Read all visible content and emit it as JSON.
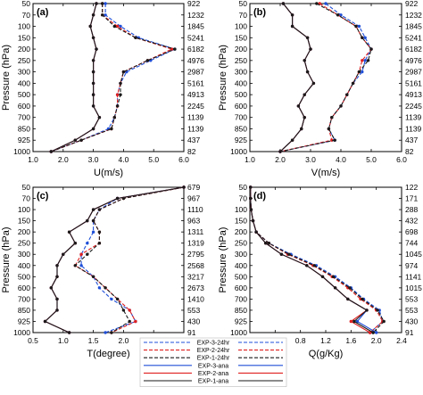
{
  "pressure_levels": [
    50,
    70,
    100,
    150,
    200,
    250,
    300,
    400,
    500,
    600,
    700,
    850,
    925,
    1000
  ],
  "legend": [
    {
      "label": "EXP-3-24hr",
      "color": "#1f4fd8",
      "dash": true
    },
    {
      "label": "EXP-2-24hr",
      "color": "#e02020",
      "dash": true
    },
    {
      "label": "EXP-1-24hr",
      "color": "#1a1a1a",
      "dash": true
    },
    {
      "label": "EXP-3-ana",
      "color": "#1f4fd8",
      "dash": false
    },
    {
      "label": "EXP-2-ana",
      "color": "#e02020",
      "dash": false
    },
    {
      "label": "EXP-1-ana",
      "color": "#1a1a1a",
      "dash": false
    }
  ],
  "chart_data": [
    {
      "type": "line",
      "panel_label": "(a)",
      "xlabel": "U(m/s)",
      "ylabel": "Pressure (hPa)",
      "xlim": [
        1.0,
        6.0
      ],
      "xticks": [
        1.0,
        2.0,
        3.0,
        4.0,
        5.0,
        6.0
      ],
      "xtick_labels": [
        "1.0",
        "2.0",
        "3.0",
        "4.0",
        "5.0",
        "6.0"
      ],
      "y": [
        50,
        70,
        100,
        150,
        200,
        250,
        300,
        400,
        500,
        600,
        700,
        850,
        925,
        1000
      ],
      "right_labels": [
        "922",
        "1232",
        "1845",
        "5241",
        "6182",
        "4976",
        "2987",
        "5161",
        "4913",
        "2245",
        "1139",
        "1139",
        "437",
        "82"
      ],
      "series": [
        {
          "name": "EXP-3-24hr",
          "group": "24hr",
          "x": [
            3.4,
            3.4,
            3.9,
            4.5,
            5.7,
            4.9,
            4.1,
            3.9,
            3.8,
            3.8,
            3.7,
            3.5,
            2.6,
            1.6
          ]
        },
        {
          "name": "EXP-2-24hr",
          "group": "24hr",
          "x": [
            3.3,
            3.3,
            3.8,
            4.4,
            5.6,
            4.8,
            4.0,
            3.9,
            3.8,
            3.8,
            3.7,
            3.6,
            2.6,
            1.6
          ]
        },
        {
          "name": "EXP-1-24hr",
          "group": "24hr",
          "x": [
            3.3,
            3.3,
            3.7,
            4.4,
            5.7,
            4.8,
            4.0,
            3.9,
            3.9,
            3.8,
            3.7,
            3.6,
            2.6,
            1.6
          ]
        },
        {
          "name": "EXP-3-ana",
          "group": "ana",
          "x": [
            3.1,
            3.0,
            2.9,
            3.0,
            3.1,
            3.0,
            3.0,
            3.0,
            3.0,
            3.0,
            3.2,
            3.0,
            2.4,
            1.6
          ]
        },
        {
          "name": "EXP-2-ana",
          "group": "ana",
          "x": [
            3.1,
            3.0,
            2.9,
            3.0,
            3.1,
            3.0,
            3.0,
            3.0,
            3.0,
            3.0,
            3.2,
            3.0,
            2.4,
            1.6
          ]
        },
        {
          "name": "EXP-1-ana",
          "group": "ana",
          "x": [
            3.1,
            3.0,
            2.9,
            3.0,
            3.1,
            3.0,
            3.0,
            3.0,
            3.0,
            3.0,
            3.2,
            3.0,
            2.4,
            1.6
          ]
        }
      ]
    },
    {
      "type": "line",
      "panel_label": "(b)",
      "xlabel": "V(m/s)",
      "ylabel": "Pressure (hPa)",
      "xlim": [
        1.0,
        6.0
      ],
      "xticks": [
        1.0,
        2.0,
        3.0,
        4.0,
        5.0,
        6.0
      ],
      "xtick_labels": [
        "1.0",
        "2.0",
        "3.0",
        "4.0",
        "5.0",
        "6.0"
      ],
      "y": [
        50,
        70,
        100,
        150,
        200,
        250,
        300,
        400,
        500,
        600,
        700,
        850,
        925,
        1000
      ],
      "right_labels": [
        "922",
        "1232",
        "1845",
        "5241",
        "6182",
        "4976",
        "2987",
        "5161",
        "4913",
        "2245",
        "1139",
        "1139",
        "437",
        "82"
      ],
      "series": [
        {
          "name": "EXP-3-24hr",
          "group": "24hr",
          "x": [
            3.5,
            4.0,
            4.6,
            4.8,
            5.0,
            4.8,
            4.7,
            4.4,
            4.2,
            4.0,
            3.7,
            3.6,
            3.8,
            2.0
          ]
        },
        {
          "name": "EXP-2-24hr",
          "group": "24hr",
          "x": [
            3.3,
            3.9,
            4.5,
            4.7,
            5.0,
            4.7,
            4.6,
            4.4,
            4.2,
            4.0,
            3.7,
            3.6,
            3.7,
            2.0
          ]
        },
        {
          "name": "EXP-1-24hr",
          "group": "24hr",
          "x": [
            3.2,
            3.9,
            4.5,
            4.7,
            5.0,
            4.9,
            4.6,
            4.4,
            4.2,
            4.0,
            3.7,
            3.6,
            3.8,
            2.0
          ]
        },
        {
          "name": "EXP-3-ana",
          "group": "ana",
          "x": [
            2.1,
            2.4,
            2.4,
            2.9,
            3.0,
            2.8,
            2.9,
            3.1,
            2.8,
            2.6,
            2.8,
            2.7,
            2.4,
            2.0
          ]
        },
        {
          "name": "EXP-2-ana",
          "group": "ana",
          "x": [
            2.1,
            2.4,
            2.4,
            2.9,
            3.0,
            2.8,
            2.9,
            3.1,
            2.8,
            2.6,
            2.8,
            2.7,
            2.4,
            2.0
          ]
        },
        {
          "name": "EXP-1-ana",
          "group": "ana",
          "x": [
            2.1,
            2.4,
            2.4,
            2.9,
            3.0,
            2.8,
            2.9,
            3.1,
            2.8,
            2.6,
            2.8,
            2.7,
            2.4,
            2.0
          ]
        }
      ]
    },
    {
      "type": "line",
      "panel_label": "(c)",
      "xlabel": "T(degree)",
      "ylabel": "Pressure (hPa)",
      "xlim": [
        0.5,
        3.0
      ],
      "xticks": [
        0.5,
        1.0,
        1.5,
        2.0,
        2.5,
        3.0
      ],
      "xtick_labels": [
        "0.5",
        "1.0",
        "1.5",
        "2.0",
        "2.5",
        "3.0"
      ],
      "y": [
        50,
        70,
        100,
        150,
        200,
        250,
        300,
        400,
        500,
        600,
        700,
        850,
        925,
        1000
      ],
      "right_labels": [
        "679",
        "967",
        "1110",
        "963",
        "1311",
        "1319",
        "2795",
        "2568",
        "3217",
        "2673",
        "1410",
        "553",
        "430",
        "91"
      ],
      "series": [
        {
          "name": "EXP-3-24hr",
          "group": "24hr",
          "x": [
            3.0,
            1.9,
            1.6,
            1.5,
            1.5,
            1.4,
            1.3,
            1.3,
            1.5,
            1.6,
            1.8,
            2.1,
            2.2,
            1.7
          ]
        },
        {
          "name": "EXP-2-24hr",
          "group": "24hr",
          "x": [
            3.0,
            2.0,
            1.6,
            1.5,
            1.6,
            1.6,
            1.3,
            1.2,
            1.5,
            1.7,
            1.9,
            2.1,
            2.2,
            1.8
          ]
        },
        {
          "name": "EXP-1-24hr",
          "group": "24hr",
          "x": [
            3.0,
            2.0,
            1.6,
            1.5,
            1.6,
            1.6,
            1.4,
            1.2,
            1.5,
            1.7,
            1.9,
            2.0,
            2.1,
            1.8
          ]
        },
        {
          "name": "EXP-3-ana",
          "group": "ana",
          "x": [
            3.0,
            1.9,
            1.5,
            1.4,
            1.1,
            1.2,
            1.0,
            0.9,
            0.9,
            0.8,
            0.9,
            0.9,
            0.7,
            1.1
          ]
        },
        {
          "name": "EXP-2-ana",
          "group": "ana",
          "x": [
            3.0,
            1.9,
            1.5,
            1.4,
            1.1,
            1.2,
            1.0,
            0.9,
            0.9,
            0.8,
            0.9,
            0.9,
            0.7,
            1.1
          ]
        },
        {
          "name": "EXP-1-ana",
          "group": "ana",
          "x": [
            3.0,
            1.9,
            1.5,
            1.4,
            1.1,
            1.2,
            1.0,
            0.9,
            0.9,
            0.8,
            0.9,
            0.9,
            0.7,
            1.1
          ]
        }
      ]
    },
    {
      "type": "line",
      "panel_label": "(d)",
      "xlabel": "Q(g/Kg)",
      "ylabel": "Pressure (hPa)",
      "xlim": [
        0.0,
        2.4
      ],
      "xticks": [
        0.0,
        0.4,
        0.8,
        1.2,
        1.6,
        2.0,
        2.4
      ],
      "xtick_labels": [
        "0.0",
        "0.4",
        "0.8",
        "1.2",
        "1.6",
        "2.0",
        "2.4"
      ],
      "y": [
        50,
        70,
        100,
        150,
        200,
        250,
        300,
        400,
        500,
        600,
        700,
        850,
        925,
        1000
      ],
      "right_labels": [
        "122",
        "171",
        "288",
        "432",
        "698",
        "744",
        "1045",
        "974",
        "1141",
        "1015",
        "553",
        "553",
        "430",
        "91"
      ],
      "series": [
        {
          "name": "EXP-3-24hr",
          "group": "24hr",
          "x": [
            0.01,
            0.01,
            0.02,
            0.05,
            0.1,
            0.3,
            0.65,
            1.05,
            1.35,
            1.6,
            1.8,
            2.05,
            2.1,
            1.9
          ]
        },
        {
          "name": "EXP-2-24hr",
          "group": "24hr",
          "x": [
            0.01,
            0.01,
            0.02,
            0.05,
            0.1,
            0.3,
            0.6,
            1.0,
            1.3,
            1.55,
            1.75,
            2.0,
            2.1,
            1.9
          ]
        },
        {
          "name": "EXP-1-24hr",
          "group": "24hr",
          "x": [
            0.01,
            0.01,
            0.02,
            0.05,
            0.1,
            0.3,
            0.62,
            1.02,
            1.32,
            1.58,
            1.78,
            2.02,
            2.12,
            1.95
          ]
        },
        {
          "name": "EXP-3-ana",
          "group": "ana",
          "x": [
            0.01,
            0.01,
            0.02,
            0.05,
            0.1,
            0.25,
            0.5,
            0.9,
            1.15,
            1.35,
            1.55,
            1.85,
            1.7,
            2.0
          ]
        },
        {
          "name": "EXP-2-ana",
          "group": "ana",
          "x": [
            0.01,
            0.01,
            0.02,
            0.05,
            0.1,
            0.25,
            0.5,
            0.9,
            1.15,
            1.35,
            1.55,
            1.85,
            1.6,
            1.9
          ]
        },
        {
          "name": "EXP-1-ana",
          "group": "ana",
          "x": [
            0.01,
            0.01,
            0.02,
            0.05,
            0.1,
            0.25,
            0.5,
            0.9,
            1.15,
            1.35,
            1.55,
            1.85,
            1.65,
            1.95
          ]
        }
      ]
    }
  ]
}
